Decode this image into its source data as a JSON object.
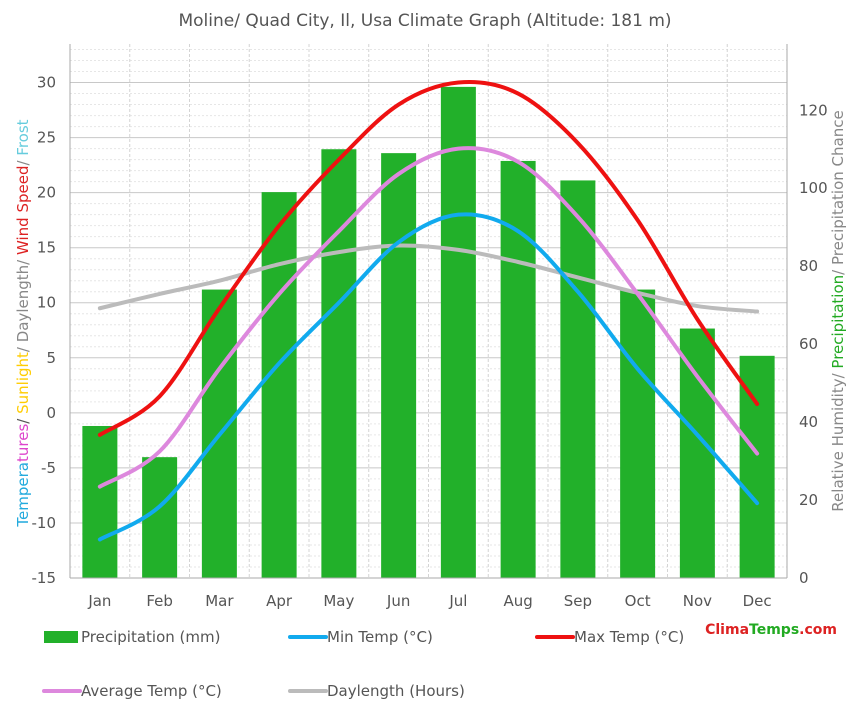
{
  "chart_data": {
    "type": "bar",
    "title": "Moline/ Quad City, Il, Usa Climate Graph (Altitude: 181 m)",
    "categories": [
      "Jan",
      "Feb",
      "Mar",
      "Apr",
      "May",
      "Jun",
      "Jul",
      "Aug",
      "Sep",
      "Oct",
      "Nov",
      "Dec"
    ],
    "ylabel_left_parts": [
      {
        "text": "Tempera",
        "color": "#22aadd"
      },
      {
        "text": "tures",
        "color": "#dd44cc"
      },
      {
        "text": "/ ",
        "color": "#555555"
      },
      {
        "text": "Sunlight",
        "color": "#ffcc00"
      },
      {
        "text": "/ Daylength/ ",
        "color": "#888888"
      },
      {
        "text": "Wind Speed",
        "color": "#dd2222"
      },
      {
        "text": "/ ",
        "color": "#888888"
      },
      {
        "text": "Frost",
        "color": "#66ccdd"
      }
    ],
    "ylabel_right_parts": [
      {
        "text": "Relative Humidity/ ",
        "color": "#888888"
      },
      {
        "text": "Precipitation",
        "color": "#22aa22"
      },
      {
        "text": "/ Precipitation Chance",
        "color": "#888888"
      }
    ],
    "y_left": {
      "min": -15,
      "max": 33.5,
      "ticks": [
        -15,
        -10,
        -5,
        0,
        5,
        10,
        15,
        20,
        25,
        30
      ]
    },
    "y_right": {
      "min": 0,
      "max": 137,
      "ticks": [
        0,
        20,
        40,
        60,
        80,
        100,
        120
      ]
    },
    "grid": true,
    "series": [
      {
        "name": "Precipitation (mm)",
        "kind": "bar",
        "axis": "right",
        "color": "#22b02a",
        "values": [
          39,
          31,
          74,
          99,
          110,
          109,
          126,
          107,
          102,
          74,
          64,
          57
        ]
      },
      {
        "name": "Min Temp (°C)",
        "kind": "line",
        "axis": "left",
        "color": "#11aaee",
        "values": [
          -11.5,
          -8.5,
          -2,
          4.5,
          10,
          15.5,
          18,
          16.5,
          11,
          4,
          -2,
          -8.2
        ]
      },
      {
        "name": "Max Temp (°C)",
        "kind": "line",
        "axis": "left",
        "color": "#ee1111",
        "values": [
          -2,
          1.5,
          9.5,
          17,
          23,
          28,
          30,
          29,
          24.5,
          17.5,
          8.5,
          0.8
        ]
      },
      {
        "name": "Average Temp (°C)",
        "kind": "line",
        "axis": "left",
        "color": "#dd88dd",
        "values": [
          -6.7,
          -3.5,
          4,
          10.8,
          16.5,
          21.7,
          24,
          22.8,
          17.8,
          10.8,
          3.3,
          -3.7
        ]
      },
      {
        "name": "Daylength (Hours)",
        "kind": "line",
        "axis": "left",
        "color": "#bbbbbb",
        "values": [
          9.5,
          10.8,
          12,
          13.5,
          14.6,
          15.2,
          14.8,
          13.7,
          12.3,
          10.9,
          9.7,
          9.2
        ]
      }
    ]
  },
  "brand": {
    "part1": "Clima",
    "part2": "Temps",
    "part3": ".com",
    "color1": "#dd2222",
    "color2": "#22aa22"
  }
}
